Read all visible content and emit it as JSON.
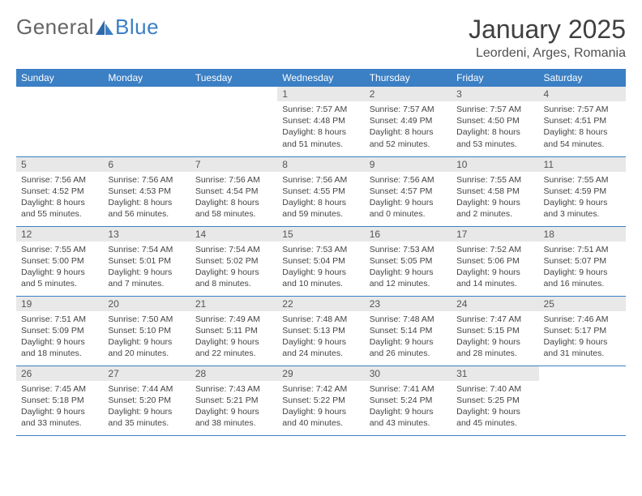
{
  "logo": {
    "text1": "General",
    "text2": "Blue"
  },
  "title": "January 2025",
  "location": "Leordeni, Arges, Romania",
  "colors": {
    "header_bg": "#3b7fc4",
    "header_text": "#ffffff",
    "daynum_bg": "#e8e8e8",
    "row_border": "#3b7fc4",
    "body_text": "#444444"
  },
  "weekdays": [
    "Sunday",
    "Monday",
    "Tuesday",
    "Wednesday",
    "Thursday",
    "Friday",
    "Saturday"
  ],
  "first_weekday_index": 3,
  "days": [
    {
      "n": 1,
      "sr": "7:57 AM",
      "ss": "4:48 PM",
      "dl": "8 hours and 51 minutes."
    },
    {
      "n": 2,
      "sr": "7:57 AM",
      "ss": "4:49 PM",
      "dl": "8 hours and 52 minutes."
    },
    {
      "n": 3,
      "sr": "7:57 AM",
      "ss": "4:50 PM",
      "dl": "8 hours and 53 minutes."
    },
    {
      "n": 4,
      "sr": "7:57 AM",
      "ss": "4:51 PM",
      "dl": "8 hours and 54 minutes."
    },
    {
      "n": 5,
      "sr": "7:56 AM",
      "ss": "4:52 PM",
      "dl": "8 hours and 55 minutes."
    },
    {
      "n": 6,
      "sr": "7:56 AM",
      "ss": "4:53 PM",
      "dl": "8 hours and 56 minutes."
    },
    {
      "n": 7,
      "sr": "7:56 AM",
      "ss": "4:54 PM",
      "dl": "8 hours and 58 minutes."
    },
    {
      "n": 8,
      "sr": "7:56 AM",
      "ss": "4:55 PM",
      "dl": "8 hours and 59 minutes."
    },
    {
      "n": 9,
      "sr": "7:56 AM",
      "ss": "4:57 PM",
      "dl": "9 hours and 0 minutes."
    },
    {
      "n": 10,
      "sr": "7:55 AM",
      "ss": "4:58 PM",
      "dl": "9 hours and 2 minutes."
    },
    {
      "n": 11,
      "sr": "7:55 AM",
      "ss": "4:59 PM",
      "dl": "9 hours and 3 minutes."
    },
    {
      "n": 12,
      "sr": "7:55 AM",
      "ss": "5:00 PM",
      "dl": "9 hours and 5 minutes."
    },
    {
      "n": 13,
      "sr": "7:54 AM",
      "ss": "5:01 PM",
      "dl": "9 hours and 7 minutes."
    },
    {
      "n": 14,
      "sr": "7:54 AM",
      "ss": "5:02 PM",
      "dl": "9 hours and 8 minutes."
    },
    {
      "n": 15,
      "sr": "7:53 AM",
      "ss": "5:04 PM",
      "dl": "9 hours and 10 minutes."
    },
    {
      "n": 16,
      "sr": "7:53 AM",
      "ss": "5:05 PM",
      "dl": "9 hours and 12 minutes."
    },
    {
      "n": 17,
      "sr": "7:52 AM",
      "ss": "5:06 PM",
      "dl": "9 hours and 14 minutes."
    },
    {
      "n": 18,
      "sr": "7:51 AM",
      "ss": "5:07 PM",
      "dl": "9 hours and 16 minutes."
    },
    {
      "n": 19,
      "sr": "7:51 AM",
      "ss": "5:09 PM",
      "dl": "9 hours and 18 minutes."
    },
    {
      "n": 20,
      "sr": "7:50 AM",
      "ss": "5:10 PM",
      "dl": "9 hours and 20 minutes."
    },
    {
      "n": 21,
      "sr": "7:49 AM",
      "ss": "5:11 PM",
      "dl": "9 hours and 22 minutes."
    },
    {
      "n": 22,
      "sr": "7:48 AM",
      "ss": "5:13 PM",
      "dl": "9 hours and 24 minutes."
    },
    {
      "n": 23,
      "sr": "7:48 AM",
      "ss": "5:14 PM",
      "dl": "9 hours and 26 minutes."
    },
    {
      "n": 24,
      "sr": "7:47 AM",
      "ss": "5:15 PM",
      "dl": "9 hours and 28 minutes."
    },
    {
      "n": 25,
      "sr": "7:46 AM",
      "ss": "5:17 PM",
      "dl": "9 hours and 31 minutes."
    },
    {
      "n": 26,
      "sr": "7:45 AM",
      "ss": "5:18 PM",
      "dl": "9 hours and 33 minutes."
    },
    {
      "n": 27,
      "sr": "7:44 AM",
      "ss": "5:20 PM",
      "dl": "9 hours and 35 minutes."
    },
    {
      "n": 28,
      "sr": "7:43 AM",
      "ss": "5:21 PM",
      "dl": "9 hours and 38 minutes."
    },
    {
      "n": 29,
      "sr": "7:42 AM",
      "ss": "5:22 PM",
      "dl": "9 hours and 40 minutes."
    },
    {
      "n": 30,
      "sr": "7:41 AM",
      "ss": "5:24 PM",
      "dl": "9 hours and 43 minutes."
    },
    {
      "n": 31,
      "sr": "7:40 AM",
      "ss": "5:25 PM",
      "dl": "9 hours and 45 minutes."
    }
  ],
  "labels": {
    "sunrise": "Sunrise:",
    "sunset": "Sunset:",
    "daylight": "Daylight:"
  }
}
